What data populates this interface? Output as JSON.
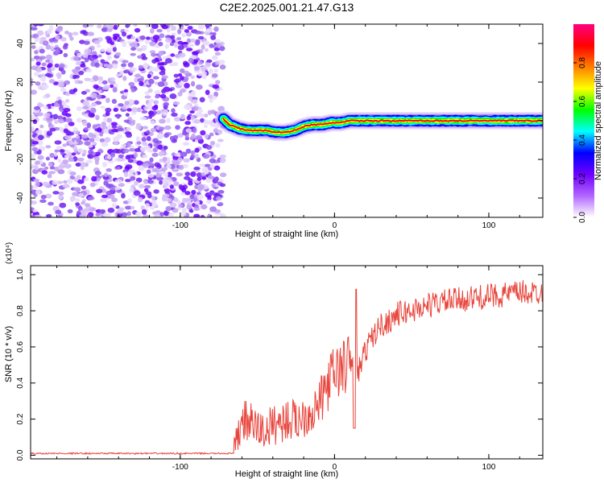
{
  "title": "C2E2.2025.001.21.47.G13",
  "chart_data": [
    {
      "type": "heatmap",
      "xlabel": "Height of straight line (km)",
      "ylabel": "Frequency (Hz)",
      "xlim": [
        -197,
        135
      ],
      "ylim": [
        -50,
        50
      ],
      "xticks": [
        -100,
        0,
        100
      ],
      "yticks": [
        40,
        20,
        0,
        -20,
        -40
      ],
      "colorbar": {
        "label": "Normalized spectral amplitude",
        "range": [
          0,
          1
        ],
        "ticks": [
          "0.0",
          "0.2",
          "0.4",
          "0.6",
          "0.8"
        ],
        "colors": [
          "#ffffff",
          "#b266ff",
          "#7000ff",
          "#0000ff",
          "#00ffff",
          "#00ff00",
          "#ffff00",
          "#ff8000",
          "#ff0000",
          "#ff0080"
        ]
      },
      "noise_region_x": [
        -197,
        -72
      ],
      "ridge": {
        "x": [
          -72,
          -68,
          -62,
          -56,
          -50,
          -44,
          -38,
          -32,
          -26,
          -20,
          -14,
          -8,
          -2,
          4,
          10,
          20,
          40,
          60,
          80,
          100,
          120,
          135
        ],
        "freq": [
          1,
          -2,
          -4,
          -5,
          -5,
          -5,
          -6,
          -6,
          -5,
          -3,
          -2,
          -2,
          -1,
          -1,
          0,
          0,
          0,
          0,
          0,
          0,
          0,
          0
        ]
      },
      "grid": false
    },
    {
      "type": "line",
      "xlabel": "Height of straight line (km)",
      "ylabel": "SNR (10 * v/v)",
      "scale_label": "(x10⁴)",
      "xlim": [
        -197,
        135
      ],
      "ylim": [
        -0.02,
        1.05
      ],
      "xticks": [
        -100,
        0,
        100
      ],
      "yticks": [
        "0.0",
        "0.2",
        "0.4",
        "0.6",
        "0.8",
        "1.0"
      ],
      "color": "#e8453c",
      "series": [
        {
          "x": [
            -197,
            -150,
            -100,
            -65,
            -60,
            -55,
            -50,
            -45,
            -40,
            -35,
            -30,
            -25,
            -20,
            -15,
            -10,
            -5,
            0,
            5,
            10,
            15,
            20,
            25,
            30,
            35,
            40,
            50,
            60,
            70,
            80,
            90,
            100,
            110,
            120,
            135
          ],
          "values": [
            0.01,
            0.01,
            0.01,
            0.01,
            0.2,
            0.18,
            0.15,
            0.13,
            0.17,
            0.18,
            0.2,
            0.19,
            0.22,
            0.24,
            0.28,
            0.38,
            0.46,
            0.48,
            0.52,
            0.45,
            0.58,
            0.66,
            0.72,
            0.74,
            0.78,
            0.8,
            0.83,
            0.85,
            0.86,
            0.87,
            0.88,
            0.89,
            0.9,
            0.9
          ]
        }
      ],
      "grid": false
    }
  ]
}
